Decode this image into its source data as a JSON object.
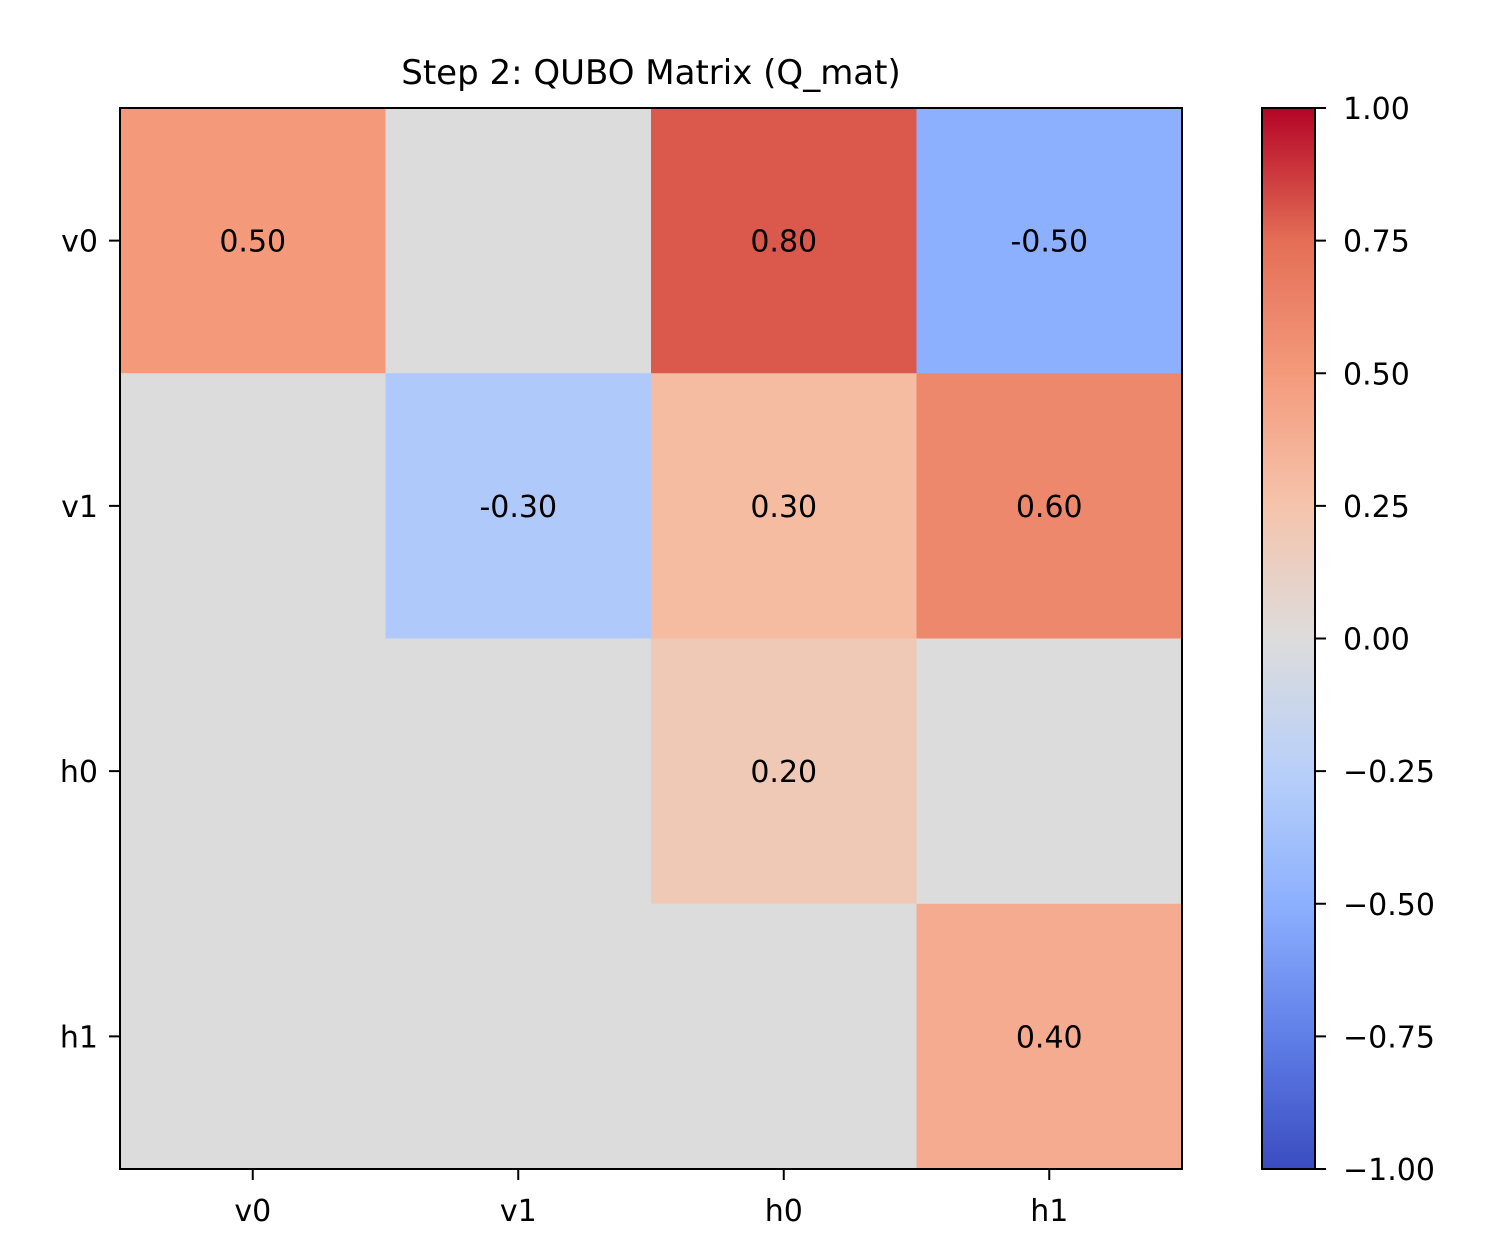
{
  "chart_data": {
    "type": "heatmap",
    "title": "Step 2: QUBO Matrix (Q_mat)",
    "xlabel": "",
    "ylabel": "",
    "x_categories": [
      "v0",
      "v1",
      "h0",
      "h1"
    ],
    "y_categories": [
      "v0",
      "v1",
      "h0",
      "h1"
    ],
    "values": [
      [
        0.5,
        0.0,
        0.8,
        -0.5
      ],
      [
        0.0,
        -0.3,
        0.3,
        0.6
      ],
      [
        0.0,
        0.0,
        0.2,
        0.0
      ],
      [
        0.0,
        0.0,
        0.0,
        0.4
      ]
    ],
    "cell_labels": [
      [
        "0.50",
        "",
        "0.80",
        "-0.50"
      ],
      [
        "",
        "-0.30",
        "0.30",
        "0.60"
      ],
      [
        "",
        "",
        "0.20",
        ""
      ],
      [
        "",
        "",
        "",
        "0.40"
      ]
    ],
    "colormap": "coolwarm",
    "vmin": -1.0,
    "vmax": 1.0,
    "colorbar_ticks": [
      1.0,
      0.75,
      0.5,
      0.25,
      0.0,
      -0.25,
      -0.5,
      -0.75,
      -1.0
    ],
    "colorbar_tick_labels": [
      "1.00",
      "0.75",
      "0.50",
      "0.25",
      "0.00",
      "−0.25",
      "−0.50",
      "−0.75",
      "−1.00"
    ],
    "grid": false,
    "legend": "colorbar-right"
  }
}
